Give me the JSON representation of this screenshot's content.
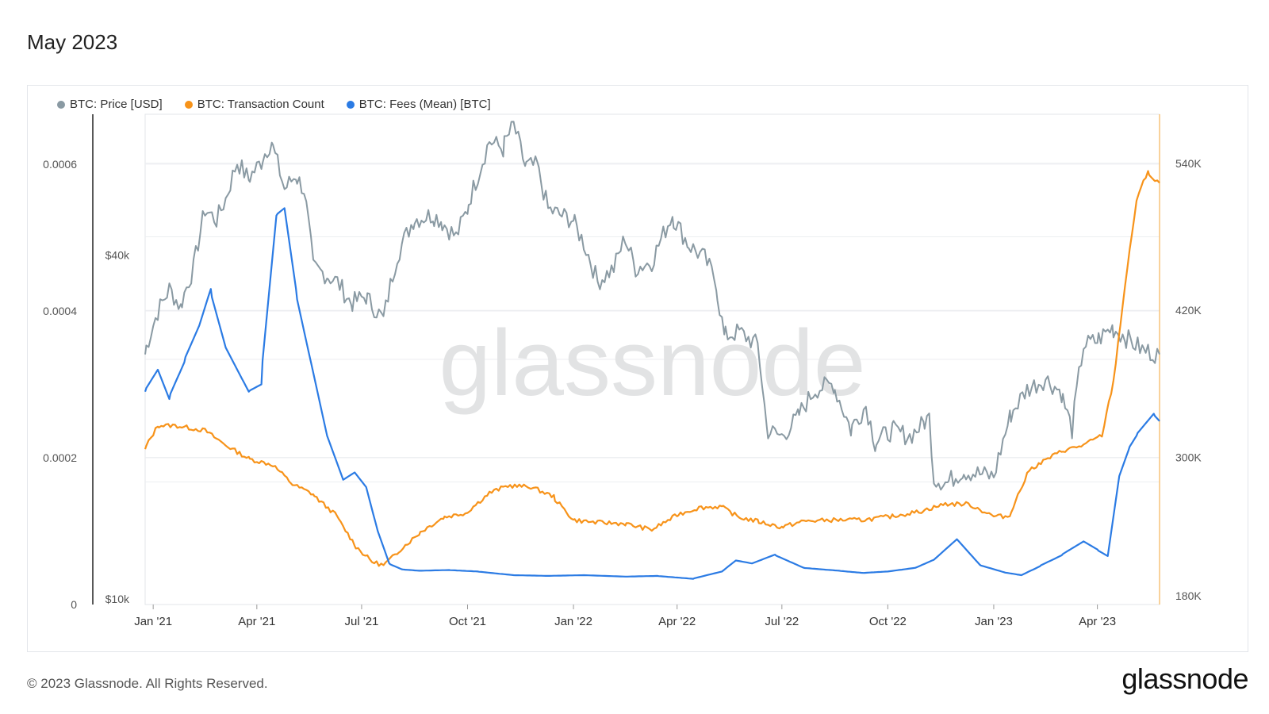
{
  "page": {
    "title": "May 2023",
    "copyright": "© 2023 Glassnode. All Rights Reserved.",
    "logo": "glassnode",
    "watermark": "glassnode"
  },
  "chart_data": {
    "type": "line",
    "grid": true,
    "legend_position": "top-left",
    "x_ticks": [
      "Jan '21",
      "Apr '21",
      "Jul '21",
      "Oct '21",
      "Jan '22",
      "Apr '22",
      "Jul '22",
      "Oct '22",
      "Jan '23",
      "Apr '23"
    ],
    "x_range": [
      "2020-12-25",
      "2023-05-25"
    ],
    "axes": {
      "fees": {
        "ticks": [
          "0.0006",
          "0.0004",
          "0.0002",
          "0"
        ],
        "tick_values": [
          0.0006,
          0.0004,
          0.0002,
          0
        ],
        "range": [
          0,
          0.000668
        ]
      },
      "price": {
        "scale": "log",
        "ticks": [
          "$40k",
          "$10k"
        ],
        "tick_values": [
          40000,
          10000
        ],
        "range": [
          10000,
          70000
        ]
      },
      "tx_count": {
        "ticks": [
          "540K",
          "420K",
          "300K",
          "180K"
        ],
        "tick_values": [
          540000,
          420000,
          300000,
          180000
        ],
        "range": [
          180000,
          580000
        ]
      }
    },
    "series": [
      {
        "name": "BTC: Price [USD]",
        "color": "#8a9aa3",
        "axis": "price",
        "dates": [
          "2020-12-25",
          "2021-01-05",
          "2021-01-15",
          "2021-01-25",
          "2021-02-05",
          "2021-02-15",
          "2021-02-25",
          "2021-03-05",
          "2021-03-15",
          "2021-03-25",
          "2021-04-05",
          "2021-04-14",
          "2021-04-25",
          "2021-05-05",
          "2021-05-12",
          "2021-05-20",
          "2021-06-01",
          "2021-06-10",
          "2021-06-22",
          "2021-07-05",
          "2021-07-20",
          "2021-08-01",
          "2021-08-15",
          "2021-09-01",
          "2021-09-08",
          "2021-09-21",
          "2021-10-01",
          "2021-10-10",
          "2021-10-20",
          "2021-11-01",
          "2021-11-10",
          "2021-11-20",
          "2021-12-01",
          "2021-12-10",
          "2021-12-20",
          "2022-01-01",
          "2022-01-10",
          "2022-01-22",
          "2022-02-05",
          "2022-02-15",
          "2022-02-24",
          "2022-03-10",
          "2022-03-28",
          "2022-04-10",
          "2022-04-25",
          "2022-05-05",
          "2022-05-12",
          "2022-05-25",
          "2022-06-10",
          "2022-06-18",
          "2022-07-01",
          "2022-07-15",
          "2022-07-30",
          "2022-08-15",
          "2022-08-30",
          "2022-09-12",
          "2022-09-20",
          "2022-10-05",
          "2022-10-20",
          "2022-11-01",
          "2022-11-06",
          "2022-11-10",
          "2022-11-22",
          "2022-12-05",
          "2022-12-20",
          "2023-01-01",
          "2023-01-15",
          "2023-01-30",
          "2023-02-15",
          "2023-03-01",
          "2023-03-10",
          "2023-03-20",
          "2023-04-01",
          "2023-04-14",
          "2023-04-25",
          "2023-05-10",
          "2023-05-25"
        ],
        "values": [
          27000,
          32000,
          35000,
          32500,
          38000,
          48000,
          46000,
          50000,
          58000,
          54000,
          58000,
          63000,
          52000,
          55000,
          52000,
          38000,
          37000,
          36000,
          33000,
          34000,
          31000,
          40000,
          46000,
          47000,
          46000,
          43000,
          48000,
          55000,
          63000,
          61000,
          67000,
          57000,
          57000,
          48000,
          47000,
          46000,
          42000,
          36000,
          38000,
          43000,
          38000,
          39000,
          47000,
          42000,
          39500,
          36000,
          29000,
          29500,
          28000,
          20000,
          19500,
          21000,
          23500,
          24000,
          20000,
          22000,
          19000,
          20000,
          19500,
          20500,
          21000,
          16500,
          16200,
          17000,
          16800,
          16600,
          21000,
          23500,
          24500,
          23200,
          20000,
          28000,
          28500,
          30000,
          29000,
          27500,
          27000
        ]
      },
      {
        "name": "BTC: Transaction Count",
        "color": "#f7931a",
        "axis": "tx_count",
        "dates": [
          "2020-12-25",
          "2021-01-05",
          "2021-01-20",
          "2021-02-15",
          "2021-03-05",
          "2021-03-25",
          "2021-04-15",
          "2021-05-01",
          "2021-05-20",
          "2021-06-10",
          "2021-06-25",
          "2021-07-10",
          "2021-07-20",
          "2021-08-01",
          "2021-08-20",
          "2021-09-10",
          "2021-10-01",
          "2021-10-20",
          "2021-11-05",
          "2021-11-25",
          "2021-12-15",
          "2022-01-01",
          "2022-01-20",
          "2022-02-15",
          "2022-03-10",
          "2022-04-01",
          "2022-04-20",
          "2022-05-10",
          "2022-05-25",
          "2022-06-10",
          "2022-07-01",
          "2022-07-20",
          "2022-08-15",
          "2022-09-10",
          "2022-10-05",
          "2022-10-30",
          "2022-11-20",
          "2022-12-10",
          "2023-01-01",
          "2023-01-15",
          "2023-02-01",
          "2023-02-15",
          "2023-03-01",
          "2023-03-20",
          "2023-04-05",
          "2023-04-15",
          "2023-04-25",
          "2023-05-05",
          "2023-05-15",
          "2023-05-20",
          "2023-05-25"
        ],
        "values": [
          306000,
          326000,
          326000,
          322000,
          310000,
          299000,
          294000,
          279000,
          270000,
          252000,
          229000,
          215000,
          212000,
          222000,
          238000,
          251000,
          255000,
          271000,
          277000,
          276000,
          268000,
          249000,
          247000,
          246000,
          241000,
          253000,
          259000,
          260000,
          251000,
          248000,
          243000,
          248000,
          249000,
          249000,
          252000,
          256000,
          262000,
          262000,
          252000,
          252000,
          290000,
          298000,
          305000,
          310000,
          318000,
          362000,
          440000,
          510000,
          534000,
          526000,
          524000
        ]
      },
      {
        "name": "BTC: Fees (Mean) [BTC]",
        "color": "#2b7be4",
        "axis": "fees",
        "dates": [
          "2020-12-25",
          "2021-01-05",
          "2021-01-15",
          "2021-01-28",
          "2021-02-10",
          "2021-02-20",
          "2021-03-05",
          "2021-03-25",
          "2021-04-05",
          "2021-04-18",
          "2021-04-25",
          "2021-05-05",
          "2021-05-18",
          "2021-06-01",
          "2021-06-15",
          "2021-06-25",
          "2021-07-05",
          "2021-07-15",
          "2021-07-25",
          "2021-08-05",
          "2021-08-20",
          "2021-09-15",
          "2021-10-10",
          "2021-11-10",
          "2021-12-10",
          "2022-01-10",
          "2022-02-15",
          "2022-03-15",
          "2022-04-15",
          "2022-05-10",
          "2022-05-22",
          "2022-06-05",
          "2022-06-25",
          "2022-07-20",
          "2022-08-20",
          "2022-09-10",
          "2022-10-01",
          "2022-10-25",
          "2022-11-10",
          "2022-11-30",
          "2022-12-20",
          "2023-01-10",
          "2023-01-25",
          "2023-02-10",
          "2023-03-01",
          "2023-03-20",
          "2023-04-01",
          "2023-04-10",
          "2023-04-20",
          "2023-04-28",
          "2023-05-05",
          "2023-05-20",
          "2023-05-25"
        ],
        "values": [
          0.00029,
          0.00032,
          0.00028,
          0.00033,
          0.00038,
          0.00043,
          0.00035,
          0.00029,
          0.0003,
          0.00053,
          0.00054,
          0.00043,
          0.00033,
          0.00023,
          0.00017,
          0.00018,
          0.00016,
          0.0001,
          5.6e-05,
          4.8e-05,
          4.6e-05,
          4.7e-05,
          4.5e-05,
          4e-05,
          3.9e-05,
          4e-05,
          3.8e-05,
          3.9e-05,
          3.5e-05,
          4.5e-05,
          6e-05,
          5.6e-05,
          6.8e-05,
          5e-05,
          4.6e-05,
          4.3e-05,
          4.5e-05,
          5e-05,
          6.1e-05,
          8.9e-05,
          5.4e-05,
          4.4e-05,
          4e-05,
          5.2e-05,
          6.7e-05,
          8.6e-05,
          7.5e-05,
          6.6e-05,
          0.000175,
          0.00021,
          0.00023,
          0.00026,
          0.00025
        ]
      }
    ]
  }
}
